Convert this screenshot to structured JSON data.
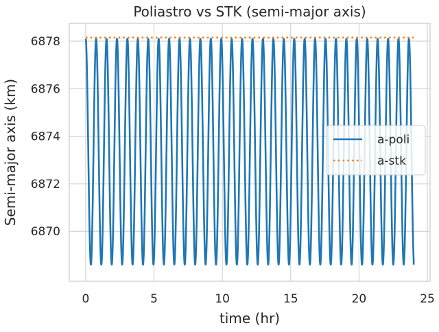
{
  "chart_data": {
    "type": "line",
    "title": "Poliastro vs STK (semi-major axis)",
    "xlabel": "time (hr)",
    "ylabel": "Semi-major axis (km)",
    "xlim": [
      -1.2,
      25.2
    ],
    "ylim": [
      6867.9,
      6878.75
    ],
    "xticks": [
      0,
      5,
      10,
      15,
      20,
      25
    ],
    "yticks": [
      6870,
      6872,
      6874,
      6876,
      6878
    ],
    "grid": true,
    "legend_position": "right",
    "series": [
      {
        "name": "a-poli",
        "color": "#1f77b4",
        "style": "solid",
        "x_range": [
          0,
          24
        ],
        "min": 6868.6,
        "max": 6878.1,
        "oscillation_period_hr": 0.763,
        "starts_at": "max",
        "ends_at": "min"
      },
      {
        "name": "a-stk",
        "color": "#ff7f0e",
        "style": "dotted",
        "x": [
          0,
          24
        ],
        "y": [
          6878.15,
          6878.15
        ]
      }
    ]
  }
}
